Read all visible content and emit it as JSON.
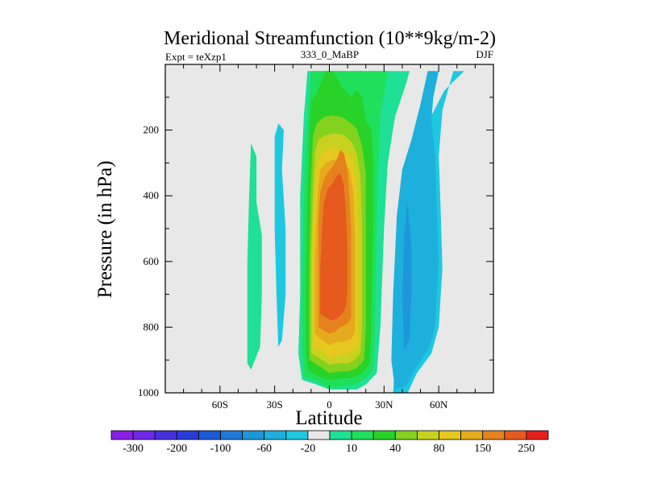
{
  "chart_data": {
    "type": "contour",
    "title": "Meridional Streamfunction (10**9kg/m-2)",
    "subtitle_left": "Expt = teXzp1",
    "subtitle_center": "333_0_MaBP",
    "subtitle_right": "DJF",
    "xlabel": "Latitude",
    "ylabel": "Pressure (in hPa)",
    "xlim": [
      -90,
      90
    ],
    "ylim": [
      1000,
      0
    ],
    "x_ticks": [
      {
        "value": -60,
        "label": "60S"
      },
      {
        "value": -30,
        "label": "30S"
      },
      {
        "value": 0,
        "label": "0"
      },
      {
        "value": 30,
        "label": "30N"
      },
      {
        "value": 60,
        "label": "60N"
      }
    ],
    "y_ticks": [
      {
        "value": 200,
        "label": "200"
      },
      {
        "value": 400,
        "label": "400"
      },
      {
        "value": 600,
        "label": "600"
      },
      {
        "value": 800,
        "label": "800"
      },
      {
        "value": 1000,
        "label": "1000"
      }
    ],
    "background_color": "#e8e8e8",
    "colorbar": {
      "levels": [
        -300,
        -250,
        -200,
        -150,
        -100,
        -80,
        -60,
        -40,
        -20,
        -10,
        10,
        20,
        40,
        60,
        80,
        100,
        150,
        200,
        250,
        300
      ],
      "labels": [
        "-300",
        "-200",
        "-100",
        "-60",
        "-20",
        "10",
        "40",
        "80",
        "150",
        "250"
      ],
      "colors": [
        "#8c1ee6",
        "#6e28e8",
        "#4630dc",
        "#2a3cd8",
        "#1e5ad8",
        "#1e78d8",
        "#1e96dc",
        "#1eb0dc",
        "#1ec8e0",
        "#e8e8e8",
        "#1ee096",
        "#1ee05a",
        "#28d228",
        "#82d21e",
        "#c8d21e",
        "#e6c81e",
        "#e6aa1e",
        "#e6821e",
        "#e65a1e",
        "#e61e1e"
      ]
    },
    "regions": [
      {
        "name": "nh-negative-cell",
        "level": -20,
        "color": "#1ec8e0",
        "points": [
          [
            35,
            1000
          ],
          [
            43,
            1000
          ],
          [
            48,
            940
          ],
          [
            56,
            880
          ],
          [
            60,
            800
          ],
          [
            62,
            620
          ],
          [
            61,
            430
          ],
          [
            60,
            280
          ],
          [
            62,
            140
          ],
          [
            68,
            20
          ],
          [
            74,
            20
          ],
          [
            63,
            80
          ],
          [
            52,
            200
          ],
          [
            45,
            320
          ],
          [
            42,
            470
          ],
          [
            38,
            700
          ],
          [
            36,
            900
          ]
        ]
      },
      {
        "name": "nh-negative-cell",
        "level": -40,
        "color": "#1eb0dc",
        "points": [
          [
            36,
            990
          ],
          [
            42,
            980
          ],
          [
            48,
            920
          ],
          [
            55,
            860
          ],
          [
            58,
            800
          ],
          [
            60,
            600
          ],
          [
            59,
            430
          ],
          [
            58,
            280
          ],
          [
            56,
            170
          ],
          [
            57,
            100
          ],
          [
            60,
            20
          ],
          [
            54,
            20
          ],
          [
            50,
            120
          ],
          [
            45,
            230
          ],
          [
            40,
            320
          ],
          [
            37,
            460
          ],
          [
            35,
            700
          ],
          [
            34,
            900
          ]
        ]
      },
      {
        "name": "nh-negative-core",
        "level": -60,
        "color": "#1e96dc",
        "points": [
          [
            41,
            870
          ],
          [
            44,
            840
          ],
          [
            45,
            700
          ],
          [
            45,
            550
          ],
          [
            43,
            420
          ],
          [
            41,
            520
          ],
          [
            40,
            700
          ]
        ]
      },
      {
        "name": "sh-negative-cell",
        "level": -20,
        "color": "#1ec8e0",
        "points": [
          [
            -28,
            860
          ],
          [
            -26,
            840
          ],
          [
            -24,
            700
          ],
          [
            -24,
            500
          ],
          [
            -26,
            320
          ],
          [
            -25,
            200
          ],
          [
            -28,
            180
          ],
          [
            -30,
            220
          ],
          [
            -30,
            500
          ],
          [
            -29,
            700
          ]
        ]
      },
      {
        "name": "sh-positive-strip",
        "level": 10,
        "color": "#1ee096",
        "points": [
          [
            -45,
            910
          ],
          [
            -43,
            930
          ],
          [
            -38,
            860
          ],
          [
            -37,
            700
          ],
          [
            -37,
            520
          ],
          [
            -40,
            420
          ],
          [
            -40,
            280
          ],
          [
            -43,
            240
          ],
          [
            -44,
            400
          ],
          [
            -45,
            600
          ]
        ]
      },
      {
        "name": "positive-cell",
        "level": 10,
        "color": "#1ee096",
        "points": [
          [
            -15,
            960
          ],
          [
            -7,
            975
          ],
          [
            0,
            990
          ],
          [
            8,
            990
          ],
          [
            15,
            990
          ],
          [
            20,
            975
          ],
          [
            26,
            940
          ],
          [
            28,
            800
          ],
          [
            30,
            500
          ],
          [
            32,
            300
          ],
          [
            36,
            160
          ],
          [
            42,
            60
          ],
          [
            44,
            20
          ],
          [
            30,
            20
          ],
          [
            20,
            20
          ],
          [
            12,
            20
          ],
          [
            5,
            20
          ],
          [
            -2,
            20
          ],
          [
            -8,
            20
          ],
          [
            -12,
            20
          ],
          [
            -14,
            160
          ],
          [
            -16,
            400
          ],
          [
            -16,
            700
          ],
          [
            -17,
            880
          ]
        ]
      },
      {
        "name": "positive-cell",
        "level": 20,
        "color": "#1ee05a",
        "points": [
          [
            -14,
            950
          ],
          [
            -7,
            965
          ],
          [
            0,
            985
          ],
          [
            8,
            980
          ],
          [
            15,
            975
          ],
          [
            20,
            955
          ],
          [
            24,
            930
          ],
          [
            25,
            800
          ],
          [
            26,
            500
          ],
          [
            27,
            280
          ],
          [
            28,
            150
          ],
          [
            31,
            60
          ],
          [
            32,
            20
          ],
          [
            18,
            20
          ],
          [
            5,
            20
          ],
          [
            -2,
            20
          ],
          [
            -10,
            20
          ],
          [
            -12,
            160
          ],
          [
            -14,
            400
          ],
          [
            -15,
            700
          ],
          [
            -15,
            870
          ]
        ]
      },
      {
        "name": "positive-cell",
        "level": 40,
        "color": "#28d228",
        "points": [
          [
            -12,
            930
          ],
          [
            -6,
            950
          ],
          [
            0,
            960
          ],
          [
            6,
            955
          ],
          [
            12,
            955
          ],
          [
            17,
            945
          ],
          [
            22,
            910
          ],
          [
            23,
            800
          ],
          [
            24,
            500
          ],
          [
            24,
            300
          ],
          [
            23,
            200
          ],
          [
            20,
            170
          ],
          [
            18,
            100
          ],
          [
            15,
            80
          ],
          [
            12,
            100
          ],
          [
            7,
            70
          ],
          [
            2,
            20
          ],
          [
            -2,
            20
          ],
          [
            -5,
            60
          ],
          [
            -7,
            90
          ],
          [
            -10,
            110
          ],
          [
            -11,
            200
          ],
          [
            -12,
            400
          ],
          [
            -13,
            700
          ],
          [
            -13,
            850
          ]
        ]
      },
      {
        "name": "positive-cell",
        "level": 60,
        "color": "#82d21e",
        "points": [
          [
            -11,
            900
          ],
          [
            -5,
            920
          ],
          [
            0,
            940
          ],
          [
            5,
            935
          ],
          [
            10,
            935
          ],
          [
            15,
            925
          ],
          [
            19,
            900
          ],
          [
            20,
            800
          ],
          [
            20,
            500
          ],
          [
            20,
            330
          ],
          [
            18,
            250
          ],
          [
            15,
            195
          ],
          [
            11,
            175
          ],
          [
            7,
            160
          ],
          [
            2,
            155
          ],
          [
            -3,
            160
          ],
          [
            -7,
            180
          ],
          [
            -9,
            220
          ],
          [
            -10,
            350
          ],
          [
            -11,
            600
          ],
          [
            -11,
            800
          ]
        ]
      },
      {
        "name": "positive-cell",
        "level": 80,
        "color": "#c8d21e",
        "points": [
          [
            -10,
            880
          ],
          [
            -5,
            895
          ],
          [
            0,
            915
          ],
          [
            5,
            910
          ],
          [
            10,
            910
          ],
          [
            14,
            900
          ],
          [
            17,
            880
          ],
          [
            18,
            780
          ],
          [
            18,
            500
          ],
          [
            17,
            340
          ],
          [
            15,
            270
          ],
          [
            12,
            235
          ],
          [
            8,
            215
          ],
          [
            3,
            210
          ],
          [
            -2,
            215
          ],
          [
            -6,
            230
          ],
          [
            -8,
            270
          ],
          [
            -9,
            400
          ],
          [
            -10,
            600
          ],
          [
            -10,
            780
          ]
        ]
      },
      {
        "name": "positive-cell",
        "level": 100,
        "color": "#e6c81e",
        "points": [
          [
            -9,
            860
          ],
          [
            -4,
            870
          ],
          [
            0,
            895
          ],
          [
            5,
            885
          ],
          [
            10,
            880
          ],
          [
            13,
            870
          ],
          [
            16,
            855
          ],
          [
            16,
            700
          ],
          [
            16,
            500
          ],
          [
            15,
            360
          ],
          [
            13,
            295
          ],
          [
            10,
            270
          ],
          [
            6,
            260
          ],
          [
            2,
            255
          ],
          [
            -2,
            260
          ],
          [
            -5,
            280
          ],
          [
            -7,
            320
          ],
          [
            -8,
            420
          ],
          [
            -9,
            600
          ],
          [
            -9,
            760
          ]
        ]
      },
      {
        "name": "positive-cell",
        "level": 150,
        "color": "#e6aa1e",
        "points": [
          [
            -8,
            820
          ],
          [
            -4,
            840
          ],
          [
            0,
            855
          ],
          [
            4,
            845
          ],
          [
            8,
            845
          ],
          [
            12,
            835
          ],
          [
            14,
            815
          ],
          [
            14,
            700
          ],
          [
            14,
            500
          ],
          [
            13,
            380
          ],
          [
            11,
            320
          ],
          [
            8,
            300
          ],
          [
            5,
            290
          ],
          [
            2,
            290
          ],
          [
            -2,
            300
          ],
          [
            -5,
            320
          ],
          [
            -6,
            370
          ],
          [
            -7,
            450
          ],
          [
            -8,
            600
          ],
          [
            -8,
            740
          ]
        ]
      },
      {
        "name": "positive-core",
        "level": 200,
        "color": "#e6821e",
        "points": [
          [
            -6,
            800
          ],
          [
            -3,
            810
          ],
          [
            0,
            820
          ],
          [
            3,
            815
          ],
          [
            6,
            800
          ],
          [
            10,
            790
          ],
          [
            12,
            770
          ],
          [
            12,
            650
          ],
          [
            12,
            500
          ],
          [
            11,
            400
          ],
          [
            10,
            320
          ],
          [
            8,
            270
          ],
          [
            6,
            260
          ],
          [
            4,
            290
          ],
          [
            2,
            310
          ],
          [
            -1,
            330
          ],
          [
            -3,
            350
          ],
          [
            -5,
            390
          ],
          [
            -6,
            480
          ],
          [
            -6,
            620
          ]
        ]
      },
      {
        "name": "positive-inner-core",
        "level": 250,
        "color": "#e65a1e",
        "points": [
          [
            -5,
            760
          ],
          [
            -2,
            770
          ],
          [
            1,
            780
          ],
          [
            4,
            775
          ],
          [
            7,
            760
          ],
          [
            9,
            740
          ],
          [
            10,
            680
          ],
          [
            10,
            560
          ],
          [
            9,
            450
          ],
          [
            8,
            370
          ],
          [
            6,
            330
          ],
          [
            4,
            340
          ],
          [
            2,
            360
          ],
          [
            -1,
            380
          ],
          [
            -3,
            420
          ],
          [
            -4,
            500
          ],
          [
            -5,
            620
          ]
        ]
      }
    ]
  }
}
